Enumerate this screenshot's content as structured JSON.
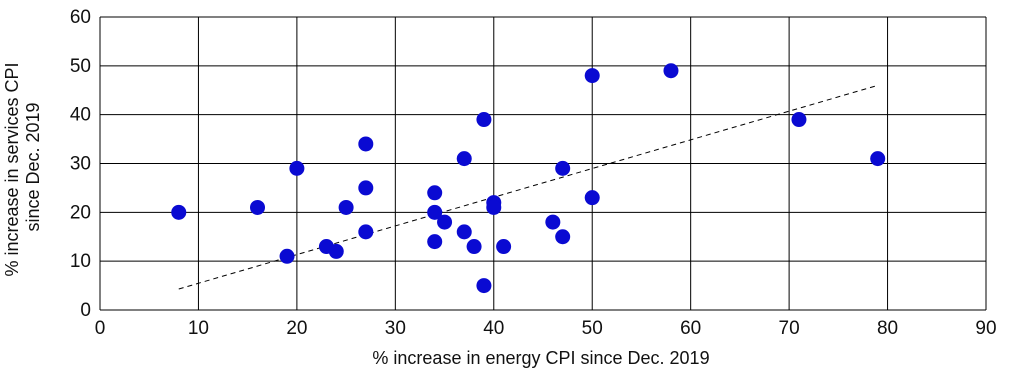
{
  "chart_data": {
    "type": "scatter",
    "xlabel": "% increase in energy CPI since Dec. 2019",
    "ylabel": [
      "% increase in services CPI",
      "since Dec. 2019"
    ],
    "xlim": [
      0,
      90
    ],
    "ylim": [
      0,
      60
    ],
    "xticks": [
      0,
      10,
      20,
      30,
      40,
      50,
      60,
      70,
      80,
      90
    ],
    "yticks": [
      0,
      10,
      20,
      30,
      40,
      50,
      60
    ],
    "grid": true,
    "points": [
      {
        "x": 8,
        "y": 20
      },
      {
        "x": 16,
        "y": 21
      },
      {
        "x": 19,
        "y": 11
      },
      {
        "x": 20,
        "y": 29
      },
      {
        "x": 23,
        "y": 13
      },
      {
        "x": 24,
        "y": 12
      },
      {
        "x": 25,
        "y": 21
      },
      {
        "x": 27,
        "y": 34
      },
      {
        "x": 27,
        "y": 25
      },
      {
        "x": 27,
        "y": 16
      },
      {
        "x": 34,
        "y": 24
      },
      {
        "x": 34,
        "y": 20
      },
      {
        "x": 34,
        "y": 14
      },
      {
        "x": 35,
        "y": 18
      },
      {
        "x": 37,
        "y": 31
      },
      {
        "x": 37,
        "y": 16
      },
      {
        "x": 38,
        "y": 13
      },
      {
        "x": 39,
        "y": 39
      },
      {
        "x": 39,
        "y": 5
      },
      {
        "x": 40,
        "y": 22
      },
      {
        "x": 40,
        "y": 21
      },
      {
        "x": 41,
        "y": 13
      },
      {
        "x": 46,
        "y": 18
      },
      {
        "x": 47,
        "y": 29
      },
      {
        "x": 47,
        "y": 15
      },
      {
        "x": 50,
        "y": 48
      },
      {
        "x": 50,
        "y": 23
      },
      {
        "x": 58,
        "y": 49
      },
      {
        "x": 71,
        "y": 39
      },
      {
        "x": 79,
        "y": 31
      }
    ],
    "trendline": {
      "x": [
        8,
        79
      ],
      "y": [
        4.3,
        46
      ]
    },
    "colors": {
      "point": "#0a0ad2",
      "grid": "#000000",
      "trendline": "#000000"
    }
  }
}
